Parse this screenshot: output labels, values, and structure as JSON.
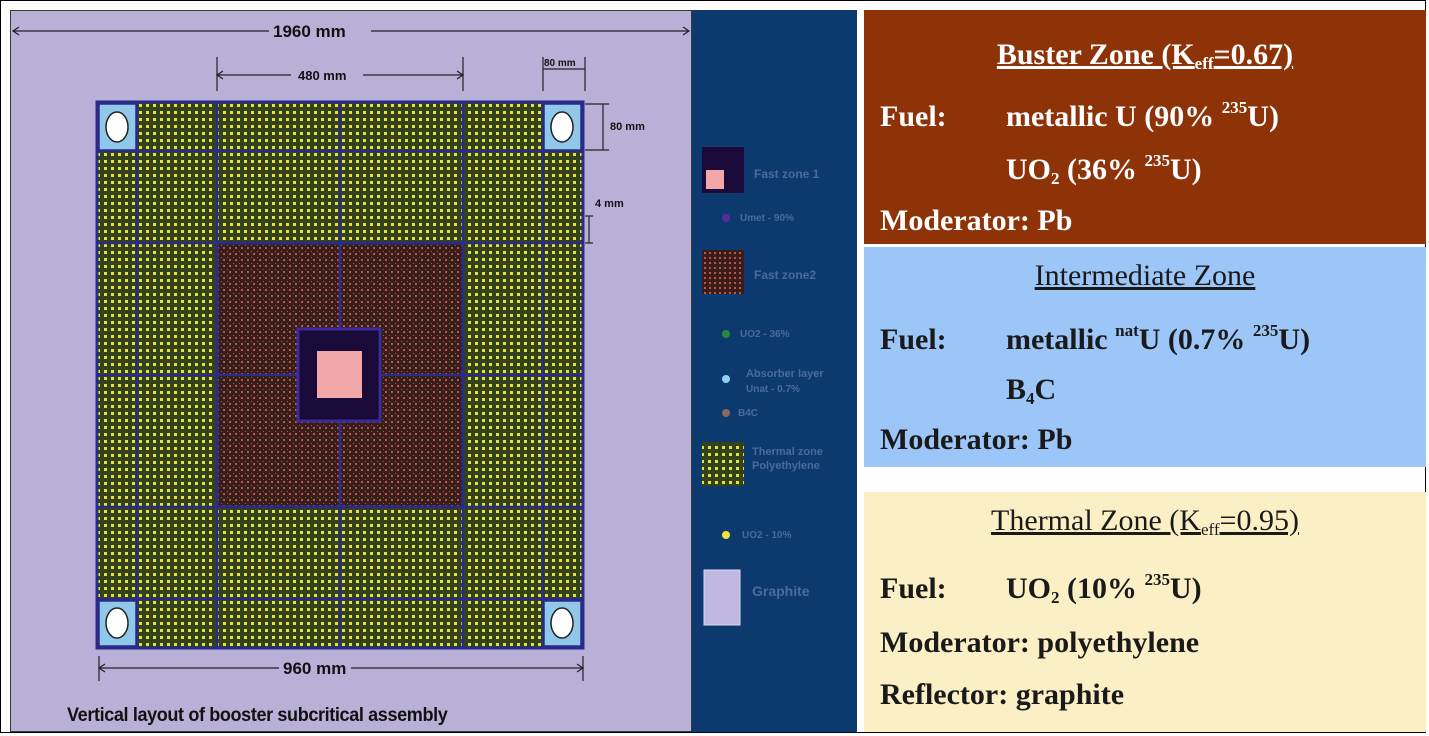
{
  "diagram": {
    "dimensions": {
      "total_width": "1960 mm",
      "zone_width": "480 mm",
      "corner_width": "80 mm",
      "corner_height": "80 mm",
      "gap": "4 mm",
      "bottom_width": "960 mm"
    },
    "caption": "Vertical layout of booster subcritical assembly",
    "colors": {
      "background": "#b9b0d8",
      "thermal_fill": "#3a4a1e",
      "thermal_dot": "#e8e43a",
      "fast2_fill": "#3a1818",
      "fast2_dot": "#c85a4a",
      "center_fill": "#1a0a3a",
      "fast1_fill": "#f2a8a8",
      "grid_line": "#2a2a8a",
      "corner_fill": "#8fc8e8"
    }
  },
  "legend": {
    "items": [
      {
        "label": "Fast zone 1",
        "icon": "fast-zone-1-swatch"
      },
      {
        "label": "Umet - 90%",
        "icon": "purple-dot"
      },
      {
        "label": "Fast zone2",
        "icon": "fast-zone-2-swatch"
      },
      {
        "label": "UO2 - 36%",
        "icon": "green-dot"
      },
      {
        "label": "Absorber layer",
        "icon": "lightblue-dot"
      },
      {
        "label": "Unat - 0.7%",
        "icon": "none"
      },
      {
        "label": "B4C",
        "icon": "brown-dot"
      },
      {
        "label": "Thermal zone",
        "icon": "thermal-zone-swatch"
      },
      {
        "label": "Polyethylene",
        "icon": "none"
      },
      {
        "label": "UO2 - 10%",
        "icon": "yellow-dot"
      },
      {
        "label": "Graphite",
        "icon": "graphite-swatch"
      }
    ]
  },
  "zones": {
    "buster": {
      "title_pre": "Buster Zone (K",
      "title_sub": "eff",
      "title_post": "=0.67)",
      "fuel_label": "Fuel:",
      "fuel1_pre": "metallic U (90% ",
      "fuel1_sup": "235",
      "fuel1_post": "U)",
      "fuel2_pre": "UO",
      "fuel2_sub": "2",
      "fuel2_mid": " (36% ",
      "fuel2_sup": "235",
      "fuel2_post": "U)",
      "moderator": "Moderator: Pb",
      "color": "#8e3208"
    },
    "intermediate": {
      "title": "Intermediate Zone",
      "fuel_label": "Fuel:",
      "fuel1_pre": "metallic ",
      "fuel1_sup1": "nat",
      "fuel1_mid": "U (0.7% ",
      "fuel1_sup2": "235",
      "fuel1_post": "U)",
      "fuel2_pre": "B",
      "fuel2_sub": "4",
      "fuel2_post": "C",
      "moderator": "Moderator: Pb",
      "color": "#9cc5f8"
    },
    "thermal": {
      "title_pre": "Thermal Zone (K",
      "title_sub": "eff",
      "title_post": "=0.95)",
      "fuel_label": "Fuel:",
      "fuel1_pre": "UO",
      "fuel1_sub": "2",
      "fuel1_mid": " (10% ",
      "fuel1_sup": "235",
      "fuel1_post": "U)",
      "moderator": "Moderator: polyethylene",
      "reflector": "Reflector: graphite",
      "color": "#fbefc6"
    }
  }
}
